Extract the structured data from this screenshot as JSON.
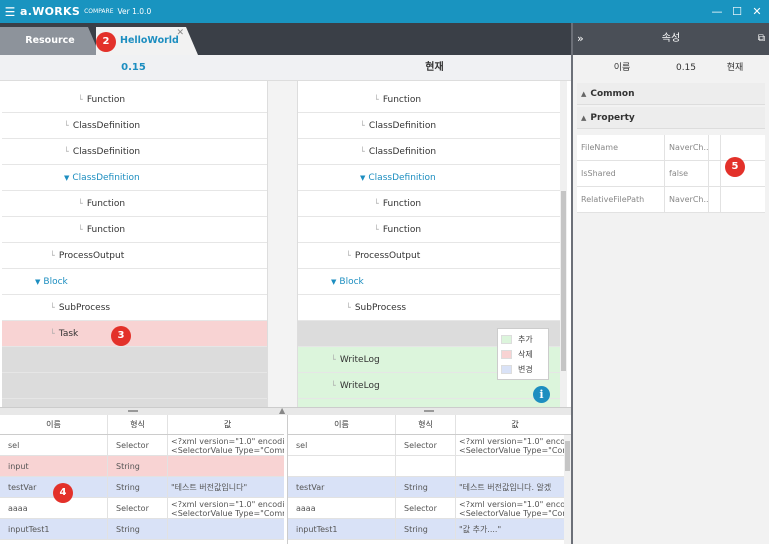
{
  "titlebar": {
    "logo": "a.WORKS",
    "subtitle": "COMPARE",
    "version": "Ver 1.0.0",
    "minimize": "—",
    "maximize": "☐",
    "close": "✕"
  },
  "tabs": [
    {
      "label": "Resource"
    },
    {
      "label": "HelloWorld",
      "close": "✕"
    }
  ],
  "markers": [
    "2",
    "3",
    "4",
    "5"
  ],
  "compare": {
    "left_header": "0.15",
    "right_header": "현재",
    "left_rows": [
      {
        "label": "Function",
        "kind": "leaf"
      },
      {
        "label": "ClassDefinition",
        "kind": "leaf"
      },
      {
        "label": "ClassDefinition",
        "kind": "leaf"
      },
      {
        "label": "ClassDefinition",
        "kind": "expanded"
      },
      {
        "label": "Function",
        "kind": "leaf"
      },
      {
        "label": "Function",
        "kind": "leaf"
      },
      {
        "label": "ProcessOutput",
        "kind": "leaf"
      },
      {
        "label": "Block",
        "kind": "expanded"
      },
      {
        "label": "SubProcess",
        "kind": "leaf"
      },
      {
        "label": "Task",
        "kind": "leaf"
      },
      {
        "label": "",
        "kind": "empty"
      },
      {
        "label": "",
        "kind": "empty"
      },
      {
        "label": "",
        "kind": "empty"
      }
    ],
    "right_rows": [
      {
        "label": "Function",
        "kind": "leaf"
      },
      {
        "label": "ClassDefinition",
        "kind": "leaf"
      },
      {
        "label": "ClassDefinition",
        "kind": "leaf"
      },
      {
        "label": "ClassDefinition",
        "kind": "expanded"
      },
      {
        "label": "Function",
        "kind": "leaf"
      },
      {
        "label": "Function",
        "kind": "leaf"
      },
      {
        "label": "ProcessOutput",
        "kind": "leaf"
      },
      {
        "label": "Block",
        "kind": "expanded"
      },
      {
        "label": "SubProcess",
        "kind": "leaf"
      },
      {
        "label": "",
        "kind": "empty"
      },
      {
        "label": "WriteLog",
        "kind": "added"
      },
      {
        "label": "WriteLog",
        "kind": "added"
      },
      {
        "label": "",
        "kind": "added"
      }
    ]
  },
  "legend": {
    "items": [
      {
        "label": "추가",
        "color": "#dcf5dc"
      },
      {
        "label": "삭제",
        "color": "#f8d3d3"
      },
      {
        "label": "변경",
        "color": "#d9e2f7"
      }
    ],
    "info": "i"
  },
  "vars": {
    "columns": [
      "이름",
      "형식",
      "값"
    ],
    "left": [
      {
        "name": "sel",
        "type": "Selector",
        "value": "<?xml version=\"1.0\" encodi",
        "value2": "<SelectorValue Type=\"Comm",
        "state": "normal"
      },
      {
        "name": "input",
        "type": "String",
        "value": "",
        "value2": "",
        "state": "deleted"
      },
      {
        "name": "testVar",
        "type": "String",
        "value": "\"테스트 버전값입니다\"",
        "value2": "",
        "state": "changed"
      },
      {
        "name": "aaaa",
        "type": "Selector",
        "value": "<?xml version=\"1.0\" encodi",
        "value2": "<SelectorValue Type=\"Comm",
        "state": "normal"
      },
      {
        "name": "inputTest1",
        "type": "String",
        "value": "",
        "value2": "",
        "state": "changed"
      }
    ],
    "right": [
      {
        "name": "sel",
        "type": "Selector",
        "value": "<?xml version=\"1.0\" encodi",
        "value2": "<SelectorValue Type=\"Com",
        "state": "normal"
      },
      {
        "name": "",
        "type": "",
        "value": "",
        "value2": "",
        "state": "normal"
      },
      {
        "name": "testVar",
        "type": "String",
        "value": "\"테스트 버전값입니다. 알겠",
        "value2": "",
        "state": "changed"
      },
      {
        "name": "aaaa",
        "type": "Selector",
        "value": "<?xml version=\"1.0\" encodi",
        "value2": "<SelectorValue Type=\"Com",
        "state": "normal"
      },
      {
        "name": "inputTest1",
        "type": "String",
        "value": "\"값 추가....\"",
        "value2": "",
        "state": "changed"
      }
    ]
  },
  "properties": {
    "title": "속성",
    "collapse": "»",
    "popout": "⧉",
    "columns": [
      "이름",
      "0.15",
      "현재"
    ],
    "groups": [
      "Common",
      "Property"
    ],
    "rows": [
      {
        "name": "FileName",
        "old": "NaverCh...",
        "current": ""
      },
      {
        "name": "IsShared",
        "old": "false",
        "current": ""
      },
      {
        "name": "RelativeFilePath",
        "old": "NaverCh...",
        "current": ""
      }
    ]
  }
}
